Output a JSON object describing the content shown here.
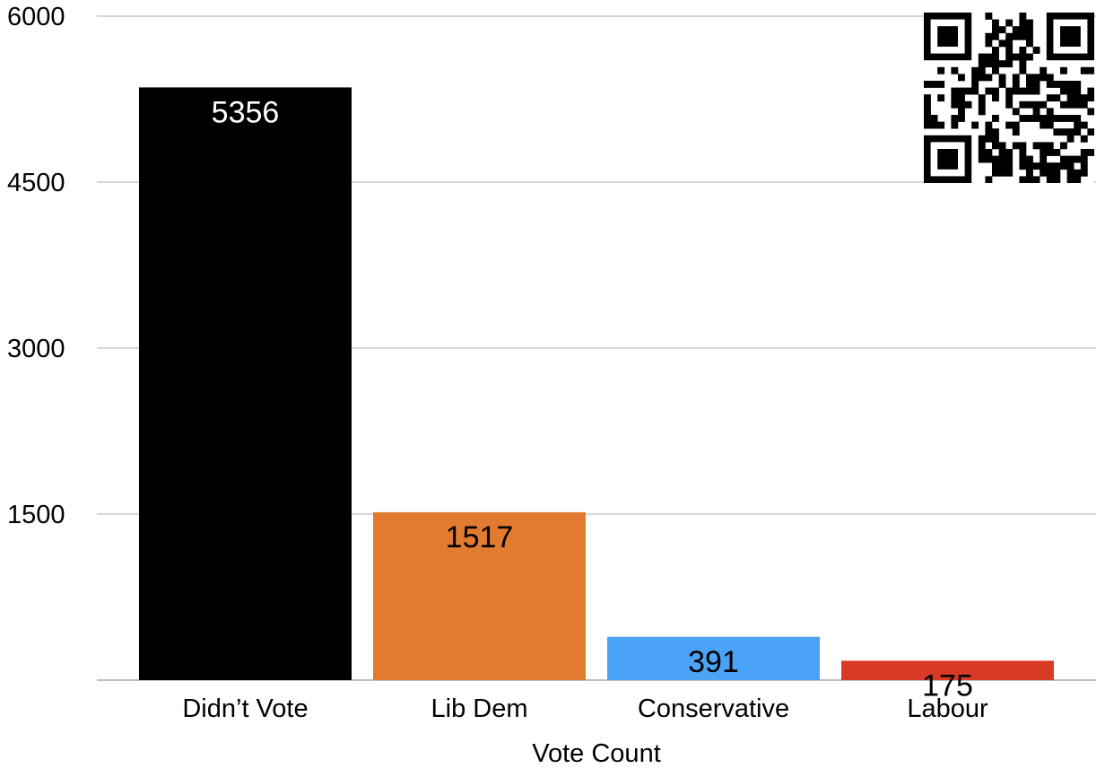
{
  "chart_data": {
    "type": "bar",
    "categories": [
      "Didn’t Vote",
      "Lib Dem",
      "Conservative",
      "Labour"
    ],
    "values": [
      5356,
      1517,
      391,
      175
    ],
    "colors": [
      "#000000",
      "#e27a30",
      "#4aa3f7",
      "#d93a26"
    ],
    "label_colors": [
      "#ffffff",
      "#000000",
      "#000000",
      "#000000"
    ],
    "title": "",
    "xlabel": "Vote Count",
    "ylabel": "",
    "ylim": [
      0,
      6000
    ],
    "yticks": [
      "0",
      "1500",
      "3000",
      "4500",
      "6000"
    ],
    "ytick_values": [
      0,
      1500,
      3000,
      4500,
      6000
    ],
    "grid": true,
    "legend": "none"
  },
  "decorations": {
    "qr_code_icon": "qr-code-icon"
  }
}
